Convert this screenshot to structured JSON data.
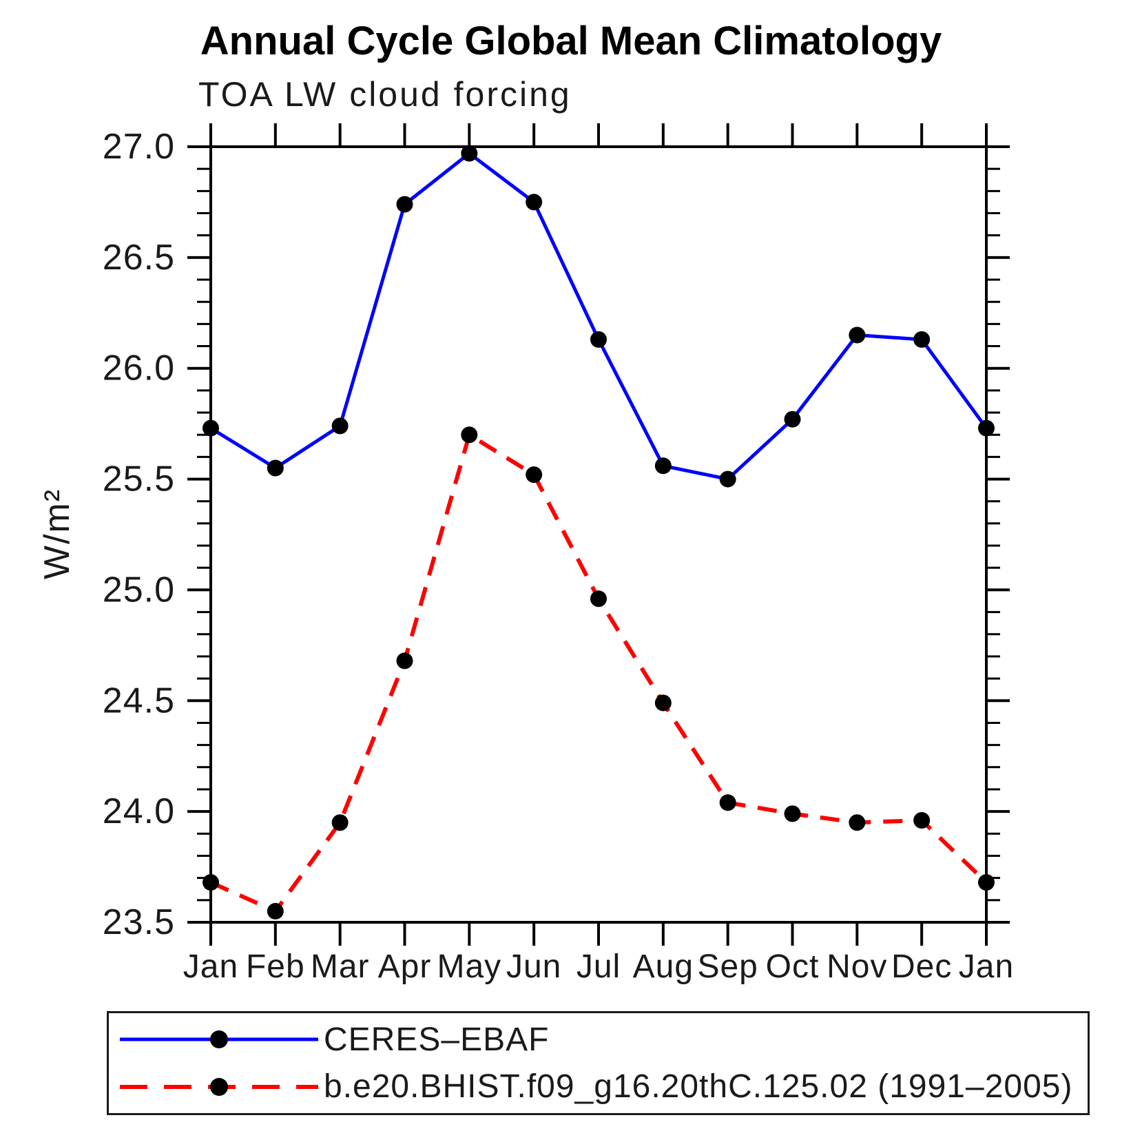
{
  "page": {
    "title": "Annual Cycle Global Mean Climatology",
    "subtitle": "TOA LW cloud forcing"
  },
  "chart_data": {
    "type": "line",
    "title": "Annual Cycle Global Mean Climatology",
    "subtitle": "TOA LW cloud forcing",
    "ylabel": "W/m²",
    "xlabel": "",
    "ylim": [
      23.5,
      27.0
    ],
    "ytick_labels": [
      "23.5",
      "24.0",
      "24.5",
      "25.0",
      "25.5",
      "26.0",
      "26.5",
      "27.0"
    ],
    "minor_tick_step": 0.1,
    "grid": false,
    "legend_position": "bottom",
    "categories": [
      "Jan",
      "Feb",
      "Mar",
      "Apr",
      "May",
      "Jun",
      "Jul",
      "Aug",
      "Sep",
      "Oct",
      "Nov",
      "Dec",
      "Jan"
    ],
    "series": [
      {
        "name": "CERES–EBAF",
        "color": "#0000ff",
        "line_style": "solid",
        "marker": "circle",
        "marker_color": "#000000",
        "values": [
          25.73,
          25.55,
          25.74,
          26.74,
          26.97,
          26.75,
          26.13,
          25.56,
          25.5,
          25.77,
          26.15,
          26.13,
          25.73
        ]
      },
      {
        "name": "b.e20.BHIST.f09_g16.20thC.125.02 (1991–2005)",
        "color": "#ff0000",
        "line_style": "dashed",
        "marker": "circle",
        "marker_color": "#000000",
        "values": [
          23.68,
          23.55,
          23.95,
          24.68,
          25.7,
          25.52,
          24.96,
          24.49,
          24.04,
          23.99,
          23.95,
          23.96,
          23.68
        ]
      }
    ]
  }
}
